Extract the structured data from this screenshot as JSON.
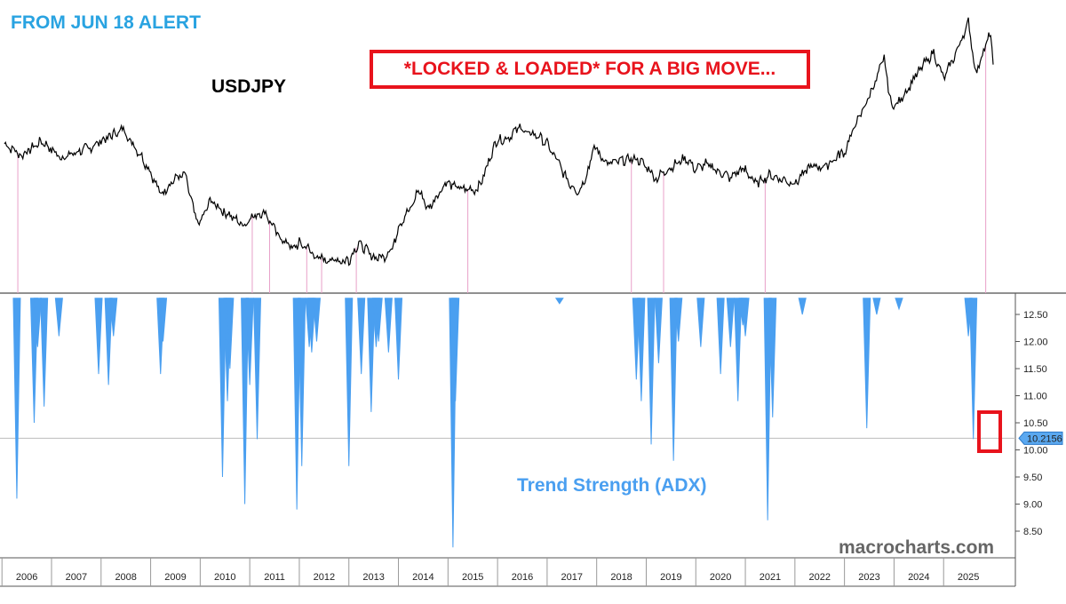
{
  "texts": {
    "alert": "FROM JUN 18 ALERT",
    "pair": "USDJPY",
    "headline": "*LOCKED & LOADED* FOR A BIG MOVE...",
    "indicator": "Trend Strength (ADX)",
    "source": "macrocharts.com"
  },
  "colors": {
    "price": "#000000",
    "adx": "#4a9ff0",
    "marker": "#e8a0c8",
    "highlight": "#e8131c",
    "alert": "#29a3e1"
  },
  "chart_data": [
    {
      "type": "line",
      "name": "USDJPY",
      "x_range": [
        2005.05,
        2025.0
      ],
      "points": [
        [
          2005.05,
          118
        ],
        [
          2005.4,
          114
        ],
        [
          2005.8,
          119
        ],
        [
          2006.0,
          116
        ],
        [
          2006.2,
          113
        ],
        [
          2006.5,
          115
        ],
        [
          2006.8,
          117
        ],
        [
          2007.0,
          119
        ],
        [
          2007.2,
          121
        ],
        [
          2007.45,
          123
        ],
        [
          2007.6,
          119
        ],
        [
          2007.8,
          114
        ],
        [
          2008.0,
          108
        ],
        [
          2008.2,
          100
        ],
        [
          2008.5,
          106
        ],
        [
          2008.7,
          107
        ],
        [
          2008.9,
          92
        ],
        [
          2009.0,
          90
        ],
        [
          2009.2,
          98
        ],
        [
          2009.5,
          94
        ],
        [
          2009.9,
          89
        ],
        [
          2010.0,
          92
        ],
        [
          2010.3,
          94
        ],
        [
          2010.6,
          85
        ],
        [
          2010.9,
          81
        ],
        [
          2011.0,
          83
        ],
        [
          2011.2,
          81
        ],
        [
          2011.3,
          78
        ],
        [
          2011.6,
          77
        ],
        [
          2011.9,
          77
        ],
        [
          2012.0,
          77
        ],
        [
          2012.2,
          83
        ],
        [
          2012.5,
          78
        ],
        [
          2012.7,
          78
        ],
        [
          2012.9,
          82
        ],
        [
          2013.0,
          89
        ],
        [
          2013.3,
          97
        ],
        [
          2013.4,
          102
        ],
        [
          2013.6,
          95
        ],
        [
          2013.9,
          103
        ],
        [
          2014.0,
          104
        ],
        [
          2014.3,
          102
        ],
        [
          2014.6,
          102
        ],
        [
          2014.8,
          110
        ],
        [
          2014.95,
          119
        ],
        [
          2015.2,
          120
        ],
        [
          2015.45,
          124
        ],
        [
          2015.6,
          122
        ],
        [
          2015.8,
          121
        ],
        [
          2016.0,
          118
        ],
        [
          2016.2,
          112
        ],
        [
          2016.45,
          104
        ],
        [
          2016.65,
          101
        ],
        [
          2016.85,
          110
        ],
        [
          2016.95,
          117
        ],
        [
          2017.2,
          111
        ],
        [
          2017.5,
          112
        ],
        [
          2017.8,
          113
        ],
        [
          2018.0,
          110
        ],
        [
          2018.2,
          106
        ],
        [
          2018.6,
          111
        ],
        [
          2018.8,
          113
        ],
        [
          2019.0,
          109
        ],
        [
          2019.2,
          111
        ],
        [
          2019.5,
          108
        ],
        [
          2019.7,
          106
        ],
        [
          2019.9,
          109
        ],
        [
          2020.0,
          109
        ],
        [
          2020.2,
          104
        ],
        [
          2020.5,
          107
        ],
        [
          2020.8,
          105
        ],
        [
          2021.0,
          104
        ],
        [
          2021.3,
          110
        ],
        [
          2021.6,
          110
        ],
        [
          2021.9,
          114
        ],
        [
          2022.0,
          115
        ],
        [
          2022.2,
          124
        ],
        [
          2022.4,
          131
        ],
        [
          2022.6,
          139
        ],
        [
          2022.8,
          148
        ],
        [
          2022.95,
          131
        ],
        [
          2023.1,
          133
        ],
        [
          2023.3,
          138
        ],
        [
          2023.5,
          144
        ],
        [
          2023.8,
          150
        ],
        [
          2024.0,
          141
        ],
        [
          2024.3,
          152
        ],
        [
          2024.5,
          161
        ],
        [
          2024.65,
          143
        ],
        [
          2024.85,
          153
        ],
        [
          2024.95,
          157
        ],
        [
          2025.0,
          146
        ]
      ]
    },
    {
      "type": "bar",
      "name": "Trend Strength (ADX)",
      "ylim": [
        8.3,
        12.8
      ],
      "y_ticks": [
        12.5,
        12.0,
        11.5,
        11.0,
        10.5,
        10.0,
        9.5,
        9.0,
        8.5
      ],
      "y_tick_labels": [
        "12.50",
        "12.00",
        "11.50",
        "11.00",
        "10.50",
        "10.00",
        "9.50",
        "9.00",
        "8.50"
      ],
      "baseline": 12.8,
      "reference_line": 10.2156,
      "last_value_label": "10.2156",
      "spikes": [
        [
          2005.3,
          9.1
        ],
        [
          2005.65,
          10.5
        ],
        [
          2005.72,
          11.9
        ],
        [
          2005.85,
          10.8
        ],
        [
          2006.15,
          12.1
        ],
        [
          2006.95,
          11.4
        ],
        [
          2007.15,
          11.2
        ],
        [
          2007.25,
          12.1
        ],
        [
          2008.2,
          11.4
        ],
        [
          2008.25,
          12.0
        ],
        [
          2009.45,
          9.5
        ],
        [
          2009.55,
          10.9
        ],
        [
          2009.6,
          11.5
        ],
        [
          2009.9,
          9.0
        ],
        [
          2010.0,
          11.2
        ],
        [
          2010.15,
          10.2
        ],
        [
          2010.95,
          8.9
        ],
        [
          2011.05,
          9.7
        ],
        [
          2011.2,
          11.9
        ],
        [
          2011.25,
          11.8
        ],
        [
          2011.35,
          12.0
        ],
        [
          2012.0,
          9.7
        ],
        [
          2012.25,
          11.4
        ],
        [
          2012.45,
          10.7
        ],
        [
          2012.55,
          11.9
        ],
        [
          2012.6,
          12.0
        ],
        [
          2012.8,
          11.8
        ],
        [
          2013.0,
          11.3
        ],
        [
          2014.1,
          8.2
        ],
        [
          2014.15,
          10.9
        ],
        [
          2016.25,
          12.7
        ],
        [
          2017.8,
          11.3
        ],
        [
          2017.9,
          10.9
        ],
        [
          2018.1,
          10.1
        ],
        [
          2018.25,
          11.6
        ],
        [
          2018.55,
          9.8
        ],
        [
          2018.65,
          12.0
        ],
        [
          2019.1,
          11.9
        ],
        [
          2019.5,
          11.4
        ],
        [
          2019.7,
          11.9
        ],
        [
          2019.85,
          10.9
        ],
        [
          2019.95,
          12.3
        ],
        [
          2020.0,
          12.1
        ],
        [
          2020.45,
          8.7
        ],
        [
          2020.55,
          10.6
        ],
        [
          2021.15,
          12.5
        ],
        [
          2022.45,
          10.4
        ],
        [
          2022.65,
          12.5
        ],
        [
          2023.1,
          12.6
        ],
        [
          2024.5,
          12.1
        ],
        [
          2024.6,
          10.2
        ]
      ]
    },
    {
      "type": "rule",
      "name": "marker lines",
      "x": [
        2005.32,
        2010.05,
        2010.4,
        2011.15,
        2011.45,
        2012.15,
        2014.4,
        2017.7,
        2018.35,
        2020.4,
        2024.85
      ]
    },
    {
      "type": "axis",
      "x_ticks": [
        2005.5,
        2006.5,
        2007.5,
        2008.5,
        2009.5,
        2010.5,
        2011.5,
        2012.5,
        2013.5,
        2014.5,
        2015.5,
        2016.5,
        2017.5,
        2018.5,
        2019.5,
        2020.5,
        2021.5,
        2022.5,
        2023.5,
        2024.5
      ],
      "x_tick_labels": [
        "2006",
        "2007",
        "2008",
        "2009",
        "2010",
        "2011",
        "2012",
        "2013",
        "2014",
        "2015",
        "2016",
        "2017",
        "2018",
        "2019",
        "2020",
        "2021",
        "2022",
        "2023",
        "2024",
        "2025"
      ]
    }
  ]
}
